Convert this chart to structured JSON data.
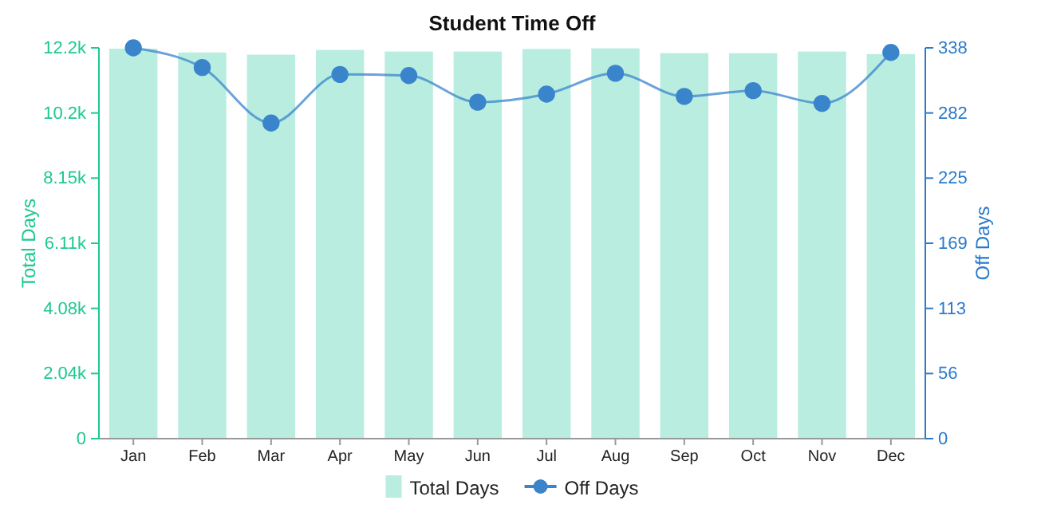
{
  "chart_data": {
    "type": "bar",
    "title": "Student Time Off",
    "ylabel": "Total Days",
    "y2label": "Off Days",
    "categories": [
      "Jan",
      "Feb",
      "Mar",
      "Apr",
      "May",
      "Jun",
      "Jul",
      "Aug",
      "Sep",
      "Oct",
      "Nov",
      "Dec"
    ],
    "series": [
      {
        "name": "Total Days",
        "color": "#b8ede0",
        "values": [
          12200,
          12080,
          12010,
          12160,
          12110,
          12110,
          12190,
          12210,
          12060,
          12060,
          12110,
          12030
        ]
      },
      {
        "name": "Off Days",
        "type": "line",
        "axis": "y2",
        "color": "#3a84cc",
        "values": [
          338,
          321,
          273,
          315,
          314,
          291,
          298,
          316,
          296,
          301,
          290,
          334
        ]
      }
    ],
    "ylim": [
      0,
      12225
    ],
    "yticks": [
      0,
      {
        "value": 2037.5,
        "label": "2.04k"
      },
      {
        "value": 4075,
        "label": "4.08k"
      },
      {
        "value": 6112.5,
        "label": "6.11k"
      },
      {
        "value": 8150,
        "label": "8.15k"
      },
      {
        "value": 10187.5,
        "label": "10.2k"
      },
      {
        "value": 12225,
        "label": "12.2k"
      }
    ],
    "y2lim": [
      0,
      338
    ],
    "y2ticks": [
      0,
      {
        "value": 56.33,
        "label": "56"
      },
      {
        "value": 112.67,
        "label": "113"
      },
      {
        "value": 169,
        "label": "169"
      },
      {
        "value": 225.33,
        "label": "225"
      },
      {
        "value": 281.67,
        "label": "282"
      },
      338
    ],
    "grid": false,
    "legend": "bottom",
    "marker": "circle",
    "line_style": "solid"
  }
}
